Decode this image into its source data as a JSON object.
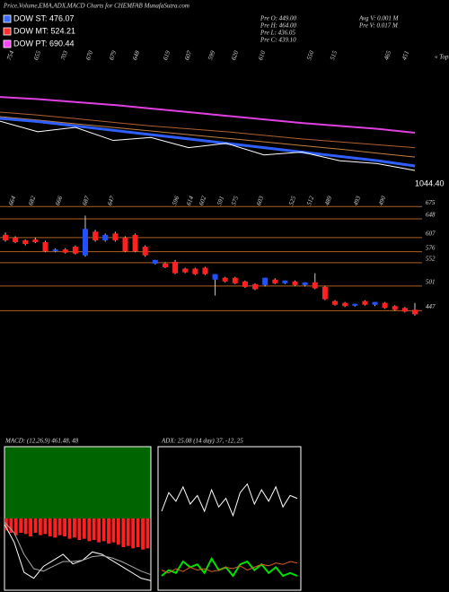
{
  "chart_data": {
    "type": "candlestick",
    "title": "Price,Volume,EMA,ADX,MACD Charts for CHEMFAB MunafaSutra.com",
    "legend": [
      {
        "name": "DOW ST: 476.07",
        "color": "#3b6cff"
      },
      {
        "name": "DOW MT: 524.21",
        "color": "#ff3030"
      },
      {
        "name": "DOW PT: 690.44",
        "color": "#ff40ff"
      }
    ],
    "info": [
      "Pre  O: 449.00",
      "Pre  H: 464.00",
      "Pre  L: 436.05",
      "Pre  C: 439.10",
      "Avg  V: 0.001 M",
      "Pre  V: 0.017 M"
    ],
    "top_labels": [
      754,
      655,
      703,
      670,
      679,
      648,
      619,
      607,
      599,
      620,
      610,
      550,
      515,
      465,
      451
    ],
    "top_note": "« Topu",
    "mid_labels": [
      664,
      682,
      666,
      687,
      647,
      596,
      614,
      602,
      591,
      575,
      603,
      525,
      512,
      489,
      493,
      490
    ],
    "ema_panel": {
      "annotation": "1044.40",
      "ylim": [
        400,
        1050
      ],
      "series": [
        {
          "color": "#e040e0",
          "values": [
            1000,
            985,
            965,
            945,
            920,
            895,
            870,
            845,
            820,
            800,
            780,
            753
          ]
        },
        {
          "color": "#b06030",
          "values": [
            895,
            875,
            850,
            825,
            800,
            780,
            760,
            735,
            710,
            690,
            670,
            650
          ]
        },
        {
          "color": "#c08040",
          "values": [
            864,
            840,
            815,
            790,
            765,
            740,
            715,
            690,
            665,
            640,
            612,
            585
          ]
        },
        {
          "color": "#2f5fff",
          "values": [
            852,
            830,
            800,
            770,
            740,
            710,
            680,
            650,
            620,
            590,
            560,
            524
          ]
        },
        {
          "color": "#ffffff",
          "values": [
            833,
            760,
            790,
            700,
            720,
            650,
            680,
            600,
            620,
            560,
            540,
            493
          ]
        }
      ]
    },
    "ylim": [
      430,
      705
    ],
    "yticks": [
      675,
      648,
      607,
      576,
      552,
      501,
      447
    ],
    "candles": [
      [
        613,
        618,
        598,
        601
      ],
      [
        607,
        610,
        595,
        597
      ],
      [
        601,
        603,
        590,
        593
      ],
      [
        603,
        607,
        595,
        597
      ],
      [
        597,
        600,
        575,
        577
      ],
      [
        577,
        583,
        575,
        581
      ],
      [
        581,
        584,
        572,
        574
      ],
      [
        587,
        590,
        570,
        572
      ],
      [
        568,
        655,
        565,
        626
      ],
      [
        620,
        624,
        598,
        601
      ],
      [
        601,
        616,
        598,
        613
      ],
      [
        616,
        620,
        598,
        601
      ],
      [
        607,
        610,
        575,
        577
      ],
      [
        613,
        616,
        575,
        577
      ],
      [
        587,
        590,
        565,
        568
      ],
      [
        550,
        558,
        548,
        558
      ],
      [
        550,
        553,
        540,
        542
      ],
      [
        554,
        558,
        527,
        529
      ],
      [
        539,
        541,
        529,
        531
      ],
      [
        539,
        541,
        525,
        527
      ],
      [
        541,
        543,
        525,
        527
      ],
      [
        515,
        527,
        480,
        527
      ],
      [
        519,
        521,
        509,
        511
      ],
      [
        519,
        521,
        505,
        507
      ],
      [
        511,
        513,
        497,
        499
      ],
      [
        505,
        507,
        492,
        494
      ],
      [
        503,
        519,
        500,
        519
      ],
      [
        515,
        518,
        505,
        507
      ],
      [
        507,
        513,
        505,
        513
      ],
      [
        511,
        513,
        501,
        503
      ],
      [
        503,
        509,
        500,
        509
      ],
      [
        509,
        529,
        494,
        496
      ],
      [
        499,
        501,
        470,
        472
      ],
      [
        468,
        470,
        458,
        460
      ],
      [
        464,
        466,
        455,
        457
      ],
      [
        458,
        462,
        456,
        462
      ],
      [
        468,
        470,
        458,
        460
      ],
      [
        460,
        466,
        457,
        466
      ],
      [
        464,
        466,
        451,
        453
      ],
      [
        457,
        459,
        447,
        449
      ],
      [
        453,
        455,
        443,
        445
      ],
      [
        449,
        464,
        436.05,
        439.1
      ]
    ],
    "macd": {
      "label": "MACD: (12,26,9) 461.48, 48",
      "ylim": [
        -60,
        60
      ],
      "histogram": [
        -10,
        -12,
        -14,
        -12,
        -13,
        -15,
        -12,
        -14,
        -13,
        -15,
        -16,
        -14,
        -15,
        -17,
        -16,
        -18,
        -17,
        -19,
        -18,
        -20,
        -19,
        -21,
        -20,
        -22,
        -24,
        -23,
        -25,
        -24,
        -26,
        -25
      ],
      "series": [
        {
          "color": "#ffffff",
          "values": [
            -5,
            -20,
            -45,
            -50,
            -40,
            -35,
            -30,
            -38,
            -35,
            -28,
            -30,
            -35,
            -40,
            -45,
            -50,
            -52
          ]
        },
        {
          "color": "#aaaaaa",
          "values": [
            -3,
            -12,
            -30,
            -42,
            -44,
            -40,
            -36,
            -36,
            -35,
            -32,
            -31,
            -33,
            -36,
            -40,
            -44,
            -47
          ]
        }
      ]
    },
    "adx": {
      "label": "ADX: 25.08  (14 day) 37, -12, 25",
      "ylim": [
        0,
        100
      ],
      "series": [
        {
          "color": "#ffffff",
          "values": [
            55,
            68,
            62,
            72,
            60,
            66,
            55,
            70,
            58,
            64,
            52,
            68,
            74,
            60,
            70,
            62,
            72,
            58,
            66,
            64
          ]
        },
        {
          "color": "#00e000",
          "values": [
            10,
            14,
            12,
            20,
            16,
            18,
            12,
            22,
            14,
            16,
            10,
            18,
            20,
            14,
            18,
            12,
            16,
            10,
            12,
            10
          ]
        },
        {
          "color": "#d06020",
          "values": [
            14,
            12,
            15,
            13,
            16,
            14,
            15,
            13,
            14,
            16,
            15,
            17,
            14,
            16,
            18,
            17,
            19,
            18,
            20,
            19
          ]
        }
      ]
    }
  }
}
